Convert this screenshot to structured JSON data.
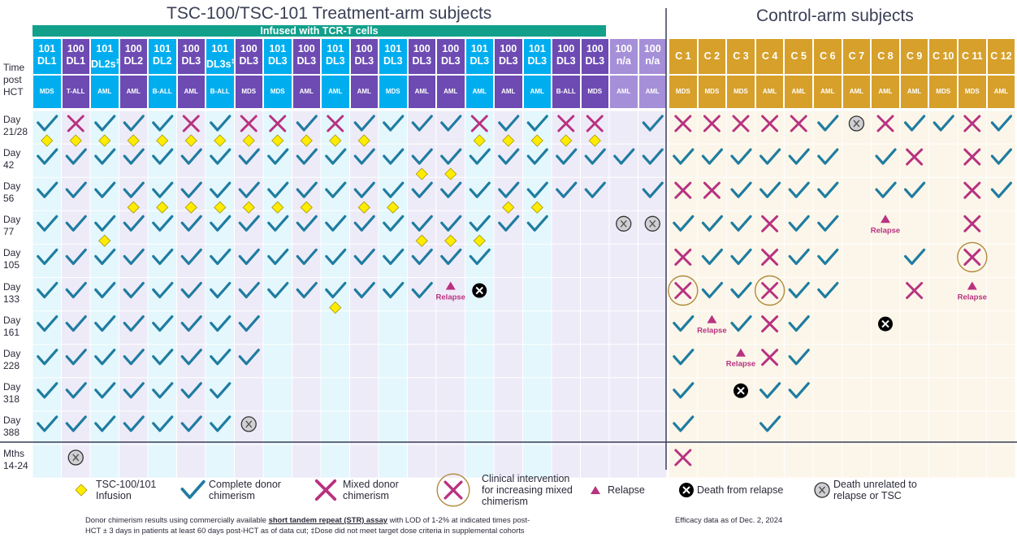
{
  "titles": {
    "treatment": "TSC-100/TSC-101 Treatment-arm subjects",
    "control": "Control-arm subjects",
    "banner": "Infused with TCR-T cells"
  },
  "header_label": [
    "Time",
    "post",
    "HCT"
  ],
  "colors": {
    "cyan": "#00aeef",
    "purple": "#6d4bb3",
    "lavender": "#a58fd8",
    "gold": "#d6a02b",
    "check": "#1f7ca0",
    "cross": "#b83280",
    "diamond": "#ffec00",
    "circle": "#b08a3c",
    "grid_cyan": "#e3f7fc",
    "grid_purple": "#eeebf8",
    "grid_gold": "#fbf6e9"
  },
  "treatment_columns": [
    {
      "product": "101",
      "dose": "DL1",
      "note": "",
      "disease": "MDS",
      "color": "cyan"
    },
    {
      "product": "100",
      "dose": "DL1",
      "note": "",
      "disease": "T-ALL",
      "color": "purple"
    },
    {
      "product": "101",
      "dose": "DL2s",
      "note": "‡",
      "disease": "AML",
      "color": "cyan"
    },
    {
      "product": "100",
      "dose": "DL2",
      "note": "",
      "disease": "AML",
      "color": "purple"
    },
    {
      "product": "101",
      "dose": "DL2",
      "note": "",
      "disease": "B-ALL",
      "color": "cyan"
    },
    {
      "product": "100",
      "dose": "DL3",
      "note": "",
      "disease": "AML",
      "color": "purple"
    },
    {
      "product": "101",
      "dose": "DL3s",
      "note": "‡",
      "disease": "B-ALL",
      "color": "cyan"
    },
    {
      "product": "100",
      "dose": "DL3",
      "note": "",
      "disease": "MDS",
      "color": "purple"
    },
    {
      "product": "101",
      "dose": "DL3",
      "note": "",
      "disease": "MDS",
      "color": "cyan"
    },
    {
      "product": "100",
      "dose": "DL3",
      "note": "",
      "disease": "AML",
      "color": "purple"
    },
    {
      "product": "101",
      "dose": "DL3",
      "note": "",
      "disease": "AML",
      "color": "cyan"
    },
    {
      "product": "100",
      "dose": "DL3",
      "note": "",
      "disease": "AML",
      "color": "purple"
    },
    {
      "product": "101",
      "dose": "DL3",
      "note": "",
      "disease": "MDS",
      "color": "cyan"
    },
    {
      "product": "100",
      "dose": "DL3",
      "note": "",
      "disease": "AML",
      "color": "purple"
    },
    {
      "product": "100",
      "dose": "DL3",
      "note": "",
      "disease": "AML",
      "color": "purple"
    },
    {
      "product": "101",
      "dose": "DL3",
      "note": "",
      "disease": "AML",
      "color": "cyan"
    },
    {
      "product": "100",
      "dose": "DL3",
      "note": "",
      "disease": "AML",
      "color": "purple"
    },
    {
      "product": "101",
      "dose": "DL3",
      "note": "",
      "disease": "AML",
      "color": "cyan"
    },
    {
      "product": "100",
      "dose": "DL3",
      "note": "",
      "disease": "B-ALL",
      "color": "purple"
    },
    {
      "product": "100",
      "dose": "DL3",
      "note": "",
      "disease": "MDS",
      "color": "purple"
    },
    {
      "product": "100",
      "dose": "n/a",
      "note": "",
      "disease": "AML",
      "color": "lavender"
    },
    {
      "product": "100",
      "dose": "n/a",
      "note": "",
      "disease": "AML",
      "color": "lavender"
    }
  ],
  "control_columns": [
    {
      "label": "C 1",
      "disease": "MDS"
    },
    {
      "label": "C 2",
      "disease": "MDS"
    },
    {
      "label": "C 3",
      "disease": "MDS"
    },
    {
      "label": "C 4",
      "disease": "AML"
    },
    {
      "label": "C 5",
      "disease": "AML"
    },
    {
      "label": "C 6",
      "disease": "AML"
    },
    {
      "label": "C 7",
      "disease": "AML"
    },
    {
      "label": "C 8",
      "disease": "AML"
    },
    {
      "label": "C 9",
      "disease": "AML"
    },
    {
      "label": "C 10",
      "disease": "MDS"
    },
    {
      "label": "C 11",
      "disease": "MDS"
    },
    {
      "label": "C 12",
      "disease": "AML"
    }
  ],
  "rows": [
    {
      "l1": "Day",
      "l2": "21/28"
    },
    {
      "l1": "Day",
      "l2": "42"
    },
    {
      "l1": "Day",
      "l2": "56"
    },
    {
      "l1": "Day",
      "l2": "77"
    },
    {
      "l1": "Day",
      "l2": "105"
    },
    {
      "l1": "Day",
      "l2": "133"
    },
    {
      "l1": "Day",
      "l2": "161"
    },
    {
      "l1": "Day",
      "l2": "228"
    },
    {
      "l1": "Day",
      "l2": "318"
    },
    {
      "l1": "Day",
      "l2": "388"
    },
    {
      "l1": "Mths",
      "l2": "14-24"
    }
  ],
  "chart_data": {
    "type": "table",
    "title": "TSC-100/TSC-101 Treatment-arm subjects vs Control-arm subjects: donor chimerism over time post HCT",
    "treatment_marks": [
      "CXCCCXCXXCXCCCCXCCXX.C",
      "CCCCCCCCCCCCCCCCCCCCCC",
      "CCCCCCCCCCCCCCCCCCCC.C",
      "CCCCCCCCCCCCCCCCCC..gg",
      "CCCCCCCCCCCCCCCC......",
      "CCCCCCCCCCCCCCrD......",
      "CCCCCCCC..............",
      "CCCCCCCC..............",
      "CCCCCCC...............",
      "CCCCCCCg..............",
      ".g...................."
    ],
    "control_marks": [
      "XXXXXCgXCCXC",
      "CCCCCC.CX.XC",
      "XXCCCC.CC.XC",
      "CCCXCC.r..X.",
      "XCCXCC..C.O.",
      "OCCOCC..X.r.",
      "CrCXC..D....",
      "C.rXC.......",
      "C.DCC.......",
      "C..C........",
      "X..........."
    ],
    "mark_codes": {
      "C": "complete donor chimerism",
      "X": "mixed donor chimerism",
      "O": "clinical intervention for increasing mixed chimerism",
      "r": "relapse",
      "D": "death from relapse",
      "g": "death unrelated to relapse or TSC"
    },
    "infusions": [
      {
        "col": 0,
        "row": 0
      },
      {
        "col": 1,
        "row": 0
      },
      {
        "col": 2,
        "row": 0
      },
      {
        "col": 3,
        "row": 0
      },
      {
        "col": 4,
        "row": 0
      },
      {
        "col": 5,
        "row": 0
      },
      {
        "col": 6,
        "row": 0
      },
      {
        "col": 7,
        "row": 0
      },
      {
        "col": 8,
        "row": 0
      },
      {
        "col": 9,
        "row": 0
      },
      {
        "col": 10,
        "row": 0
      },
      {
        "col": 11,
        "row": 0
      },
      {
        "col": 15,
        "row": 0
      },
      {
        "col": 16,
        "row": 0
      },
      {
        "col": 17,
        "row": 0
      },
      {
        "col": 18,
        "row": 0
      },
      {
        "col": 19,
        "row": 0
      },
      {
        "col": 13,
        "row": 1
      },
      {
        "col": 14,
        "row": 1
      },
      {
        "col": 3,
        "row": 2
      },
      {
        "col": 4,
        "row": 2
      },
      {
        "col": 5,
        "row": 2
      },
      {
        "col": 6,
        "row": 2
      },
      {
        "col": 7,
        "row": 2
      },
      {
        "col": 8,
        "row": 2
      },
      {
        "col": 9,
        "row": 2
      },
      {
        "col": 11,
        "row": 2
      },
      {
        "col": 12,
        "row": 2
      },
      {
        "col": 16,
        "row": 2
      },
      {
        "col": 17,
        "row": 2
      },
      {
        "col": 2,
        "row": 3
      },
      {
        "col": 13,
        "row": 3
      },
      {
        "col": 14,
        "row": 3
      },
      {
        "col": 15,
        "row": 3
      },
      {
        "col": 10,
        "row": 5
      }
    ],
    "relapse_label": "Relapse"
  },
  "legend": [
    {
      "icon": "diamond",
      "lines": [
        "TSC-100/101",
        "Infusion"
      ]
    },
    {
      "icon": "check",
      "lines": [
        "Complete donor",
        "chimerism"
      ]
    },
    {
      "icon": "cross",
      "lines": [
        "Mixed donor",
        "chimerism"
      ]
    },
    {
      "icon": "circled-cross",
      "lines": [
        "Clinical intervention",
        "for increasing mixed",
        "chimerism"
      ]
    },
    {
      "icon": "relapse",
      "lines": [
        "Relapse"
      ]
    },
    {
      "icon": "death-relapse",
      "lines": [
        "Death from relapse"
      ]
    },
    {
      "icon": "death-unrelated",
      "lines": [
        "Death unrelated to",
        "relapse or TSC"
      ]
    }
  ],
  "footnote": {
    "part1": "Donor chimerism results using commercially available ",
    "emph": "short tandem repeat (STR) assay",
    "part2": " with LOD of 1-2% at indicated times post-",
    "line2": "HCT ± 3 days in patients at least 60 days post-HCT as of data cut; ‡Dose did not meet target dose criteria in supplemental cohorts",
    "efficacy": "Efficacy data as of Dec. 2, 2024"
  }
}
